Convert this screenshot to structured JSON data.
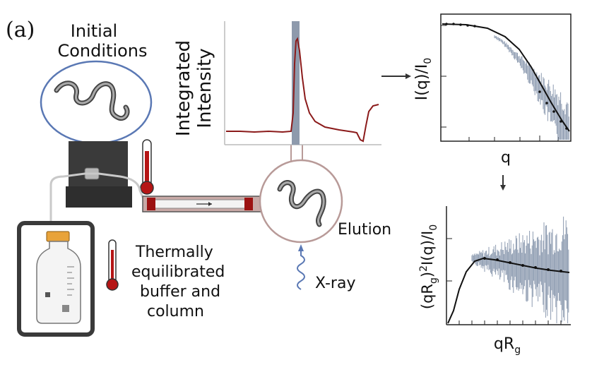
{
  "panel_label": "(a)",
  "labels": {
    "initial_line1": "Initial",
    "initial_line2": "Conditions",
    "intensity_line1": "Integrated",
    "intensity_line2": "Intensity",
    "elution": "Elution",
    "xray": "X-ray",
    "buffer_line1": "Thermally",
    "buffer_line2": "equilibrated",
    "buffer_line3": "buffer and",
    "buffer_line4": "column"
  },
  "colors": {
    "chromatogram": "#8b1a1a",
    "peak_band": "#8e9aac",
    "scatter_noise": "#8d9bb0",
    "fit_line": "#111111",
    "circle_outline": "#5a78b4",
    "thermometer": "#b51515",
    "bottle_cap": "#e8a33a",
    "xray_wave": "#5a78b4"
  },
  "icons": [
    "thermometer-icon",
    "protein-chain-icon",
    "xray-wave-icon",
    "buffer-bottle-icon",
    "chromatography-column-icon",
    "pump-icon"
  ],
  "chart_data": [
    {
      "type": "line",
      "ylabel": "Integrated Intensity",
      "xlabel": "",
      "description_series": [
        {
          "x": [
            0,
            0.1,
            0.2,
            0.3,
            0.4,
            0.45,
            0.47,
            0.5,
            0.55,
            0.6,
            0.7,
            0.8,
            0.88,
            0.92,
            0.95,
            1.0
          ],
          "y": [
            0.05,
            0.05,
            0.05,
            0.06,
            0.06,
            0.9,
            0.95,
            0.6,
            0.25,
            0.12,
            0.08,
            0.06,
            0.05,
            -0.05,
            0.25,
            0.25
          ]
        }
      ],
      "highlight_band_x": 0.47
    },
    {
      "type": "scatter",
      "xlabel": "q",
      "ylabel": "I(q)/I0",
      "xscale": "log",
      "yscale": "log"
    },
    {
      "type": "scatter",
      "xlabel": "qRg",
      "ylabel": "(qRg)2I(q)/I0"
    }
  ],
  "kratky_ylabel_parts": {
    "a": "(qR",
    "sub": "g",
    "b": ")",
    "sup": "2",
    "c": "I(q)/I",
    "sub0": "0"
  },
  "guinier_ylabel_parts": {
    "a": "I(q)/I",
    "sub0": "0"
  },
  "kratky_xlabel_parts": {
    "a": "qR",
    "sub": "g"
  }
}
